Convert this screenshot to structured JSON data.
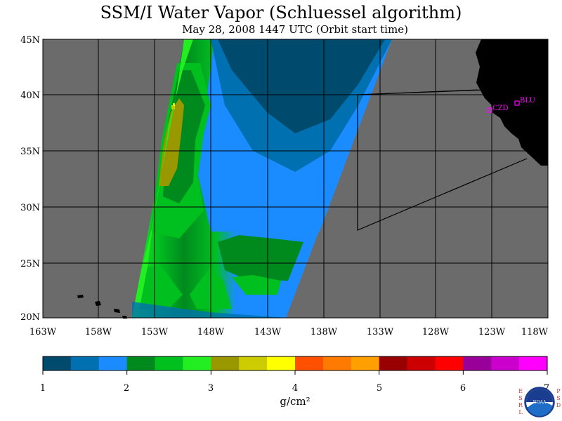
{
  "header": {
    "title": "SSM/I Water Vapor (Schluessel algorithm)",
    "subtitle": "May 28, 2008  1447 UTC  (Orbit start time)"
  },
  "map": {
    "lat_labels": [
      "45N",
      "40N",
      "35N",
      "30N",
      "25N",
      "20N"
    ],
    "lon_labels": [
      "163W",
      "158W",
      "153W",
      "148W",
      "143W",
      "138W",
      "133W",
      "128W",
      "123W",
      "118W"
    ],
    "stations": [
      {
        "id": "CZD",
        "label": "CZD"
      },
      {
        "id": "BLU",
        "label": "BLU"
      }
    ],
    "colors": {
      "ocean_no_data": "#6b6b6b",
      "land": "#000000",
      "station_marker": "#ff00ff"
    }
  },
  "colorbar": {
    "tick_labels": [
      "1",
      "2",
      "3",
      "4",
      "5",
      "6",
      "7"
    ],
    "unit_label": "g/cm²",
    "colors": [
      "#004a6e",
      "#0070b0",
      "#1a8cff",
      "#008a1e",
      "#00c020",
      "#22ee22",
      "#9a9800",
      "#cccc00",
      "#ffff00",
      "#ff5000",
      "#ff7a00",
      "#ffa000",
      "#990000",
      "#cc0000",
      "#ff0000",
      "#990099",
      "#cc00cc",
      "#ff00ff"
    ]
  },
  "logo": {
    "left_letters": "ESRL",
    "right_letters": "PSD",
    "name": "NOAA"
  }
}
